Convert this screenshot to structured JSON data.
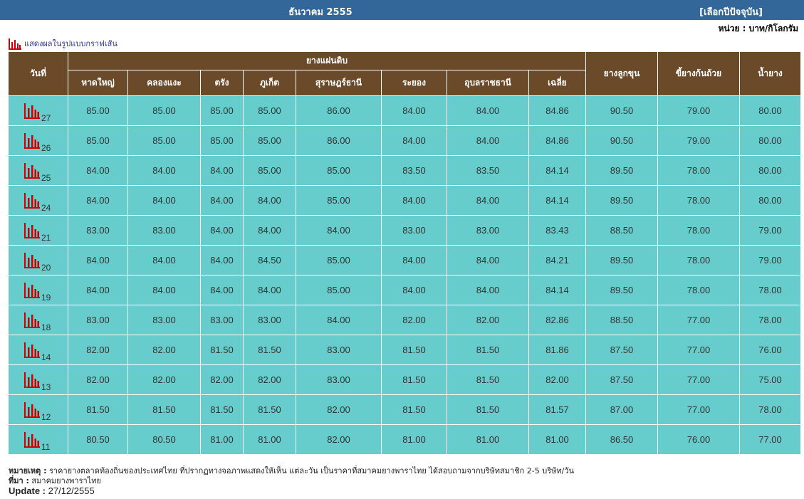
{
  "header": {
    "month_year": "ธันวาคม 2555",
    "choose_year": "[เลือกปีปัจจุบัน]"
  },
  "unit": "หน่วย : บาท/กิโลกรัม",
  "graph_link_label": "แสดงผลในรูปแบบกราฟเส้น",
  "columns": {
    "day": "วันที่",
    "group_sheet": "ยางแผ่นดิบ",
    "hatyai": "หาดใหญ่",
    "khlongnae": "คลองแงะ",
    "trang": "ตรัง",
    "phuket": "ภูเก็ต",
    "surat": "สุราษฎร์ธานี",
    "rayong": "ระยอง",
    "ubon": "อุบลราชธานี",
    "avg": "เฉลี่ย",
    "cup_lump": "ยางลูกขุน",
    "scrap": "ขี้ยางก้นถ้วย",
    "latex": "น้ำยาง"
  },
  "colors": {
    "header_bg": "#336699",
    "col_header_bg": "#6b4a2a",
    "cell_bg": "#66cccc",
    "icon": "#cc0000"
  },
  "rows": [
    {
      "day": "27",
      "hatyai": "85.00",
      "khlongnae": "85.00",
      "trang": "85.00",
      "phuket": "85.00",
      "surat": "86.00",
      "rayong": "84.00",
      "ubon": "84.00",
      "avg": "84.86",
      "cup_lump": "90.50",
      "scrap": "79.00",
      "latex": "80.00"
    },
    {
      "day": "26",
      "hatyai": "85.00",
      "khlongnae": "85.00",
      "trang": "85.00",
      "phuket": "85.00",
      "surat": "86.00",
      "rayong": "84.00",
      "ubon": "84.00",
      "avg": "84.86",
      "cup_lump": "90.50",
      "scrap": "79.00",
      "latex": "80.00"
    },
    {
      "day": "25",
      "hatyai": "84.00",
      "khlongnae": "84.00",
      "trang": "84.00",
      "phuket": "85.00",
      "surat": "85.00",
      "rayong": "83.50",
      "ubon": "83.50",
      "avg": "84.14",
      "cup_lump": "89.50",
      "scrap": "78.00",
      "latex": "80.00"
    },
    {
      "day": "24",
      "hatyai": "84.00",
      "khlongnae": "84.00",
      "trang": "84.00",
      "phuket": "84.00",
      "surat": "85.00",
      "rayong": "84.00",
      "ubon": "84.00",
      "avg": "84.14",
      "cup_lump": "89.50",
      "scrap": "78.00",
      "latex": "80.00"
    },
    {
      "day": "21",
      "hatyai": "83.00",
      "khlongnae": "83.00",
      "trang": "84.00",
      "phuket": "84.00",
      "surat": "84.00",
      "rayong": "83.00",
      "ubon": "83.00",
      "avg": "83.43",
      "cup_lump": "88.50",
      "scrap": "78.00",
      "latex": "79.00"
    },
    {
      "day": "20",
      "hatyai": "84.00",
      "khlongnae": "84.00",
      "trang": "84.00",
      "phuket": "84.50",
      "surat": "85.00",
      "rayong": "84.00",
      "ubon": "84.00",
      "avg": "84.21",
      "cup_lump": "89.50",
      "scrap": "78.00",
      "latex": "79.00"
    },
    {
      "day": "19",
      "hatyai": "84.00",
      "khlongnae": "84.00",
      "trang": "84.00",
      "phuket": "84.00",
      "surat": "85.00",
      "rayong": "84.00",
      "ubon": "84.00",
      "avg": "84.14",
      "cup_lump": "89.50",
      "scrap": "78.00",
      "latex": "78.00"
    },
    {
      "day": "18",
      "hatyai": "83.00",
      "khlongnae": "83.00",
      "trang": "83.00",
      "phuket": "83.00",
      "surat": "84.00",
      "rayong": "82.00",
      "ubon": "82.00",
      "avg": "82.86",
      "cup_lump": "88.50",
      "scrap": "77.00",
      "latex": "78.00"
    },
    {
      "day": "14",
      "hatyai": "82.00",
      "khlongnae": "82.00",
      "trang": "81.50",
      "phuket": "81.50",
      "surat": "83.00",
      "rayong": "81.50",
      "ubon": "81.50",
      "avg": "81.86",
      "cup_lump": "87.50",
      "scrap": "77.00",
      "latex": "76.00"
    },
    {
      "day": "13",
      "hatyai": "82.00",
      "khlongnae": "82.00",
      "trang": "82.00",
      "phuket": "82.00",
      "surat": "83.00",
      "rayong": "81.50",
      "ubon": "81.50",
      "avg": "82.00",
      "cup_lump": "87.50",
      "scrap": "77.00",
      "latex": "75.00"
    },
    {
      "day": "12",
      "hatyai": "81.50",
      "khlongnae": "81.50",
      "trang": "81.50",
      "phuket": "81.50",
      "surat": "82.00",
      "rayong": "81.50",
      "ubon": "81.50",
      "avg": "81.57",
      "cup_lump": "87.00",
      "scrap": "77.00",
      "latex": "78.00"
    },
    {
      "day": "11",
      "hatyai": "80.50",
      "khlongnae": "80.50",
      "trang": "81.00",
      "phuket": "81.00",
      "surat": "82.00",
      "rayong": "81.00",
      "ubon": "81.00",
      "avg": "81.00",
      "cup_lump": "86.50",
      "scrap": "76.00",
      "latex": "77.00"
    }
  ],
  "footer": {
    "note_label": "หมายเหตุ :",
    "note_text": "ราคายางตลาดท้องถิ่นของประเทศไทย ที่ปรากฏทางจอภาพแสดงให้เห็น แต่ละวัน เป็นราคาที่สมาคมยางพาราไทย ได้สอบถามจากบริษัทสมาชิก 2-5 บริษัท/วัน",
    "source_label": "ที่มา :",
    "source_text": "สมาคมยางพาราไทย",
    "update_label": "Update :",
    "update_text": "27/12/2555"
  }
}
